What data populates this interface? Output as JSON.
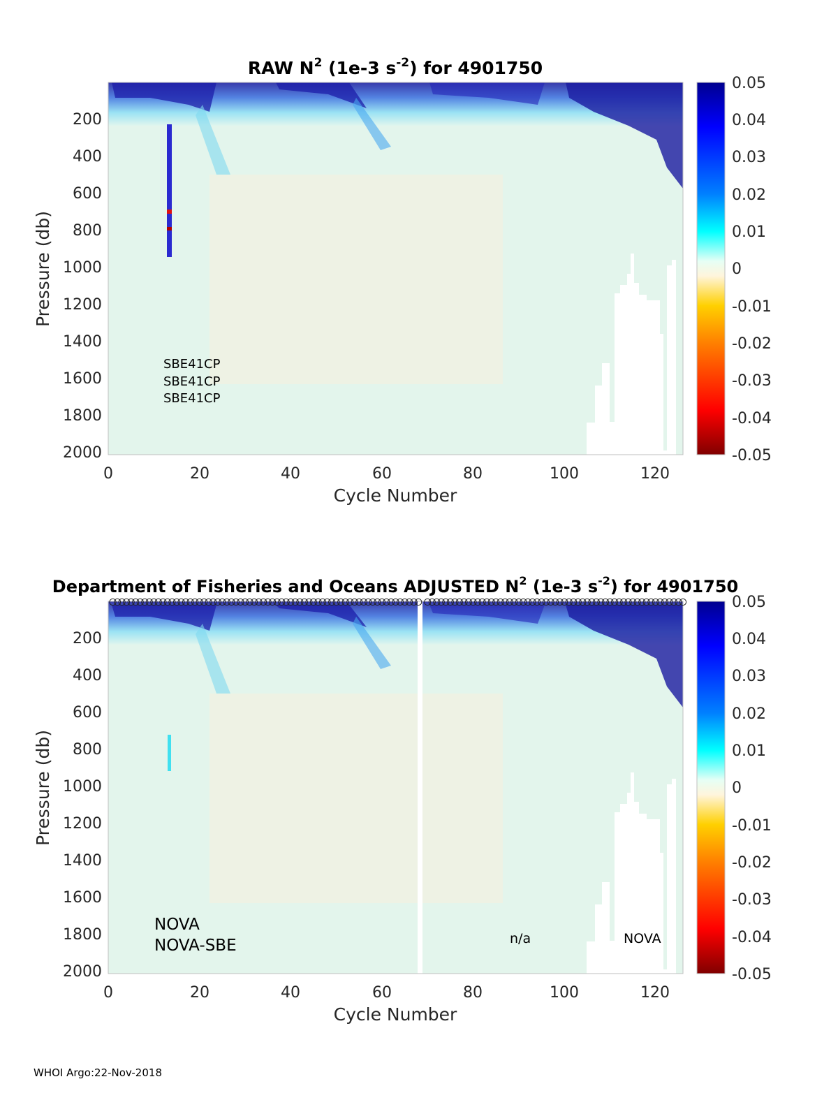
{
  "chart_data": [
    {
      "type": "heatmap",
      "title_prefix": "RAW N",
      "title_sup": "2",
      "title_mid": " (1e-3 s",
      "title_sup2": "-2",
      "title_suffix": ") for 4901750",
      "xlabel": "Cycle Number",
      "ylabel": "Pressure (db)",
      "xlim": [
        0,
        126
      ],
      "ylim": [
        2000,
        0
      ],
      "xticks": [
        "0",
        "20",
        "40",
        "60",
        "80",
        "100",
        "120"
      ],
      "yticks": [
        "200",
        "400",
        "600",
        "800",
        "1000",
        "1200",
        "1400",
        "1600",
        "1800",
        "2000"
      ],
      "colorbar_ticks": [
        "0.05",
        "0.04",
        "0.03",
        "0.02",
        "0.01",
        "0",
        "-0.01",
        "-0.02",
        "-0.03",
        "-0.04",
        "-0.05"
      ],
      "clim": [
        -0.05,
        0.05
      ],
      "annotations": [
        "SBE41CP",
        "SBE41CP",
        "SBE41CP"
      ]
    },
    {
      "type": "heatmap",
      "title_prefix": "Department of Fisheries and Oceans  ADJUSTED N",
      "title_sup": "2",
      "title_mid": " (1e-3 s",
      "title_sup2": "-2",
      "title_suffix": ") for 4901750",
      "xlabel": "Cycle Number",
      "ylabel": "Pressure (db)",
      "xlim": [
        0,
        126
      ],
      "ylim": [
        2000,
        0
      ],
      "xticks": [
        "0",
        "20",
        "40",
        "60",
        "80",
        "100",
        "120"
      ],
      "yticks": [
        "200",
        "400",
        "600",
        "800",
        "1000",
        "1200",
        "1400",
        "1600",
        "1800",
        "2000"
      ],
      "colorbar_ticks": [
        "0.05",
        "0.04",
        "0.03",
        "0.02",
        "0.01",
        "0",
        "-0.01",
        "-0.02",
        "-0.03",
        "-0.04",
        "-0.05"
      ],
      "clim": [
        -0.05,
        0.05
      ],
      "annotations": [
        "NOVA",
        "NOVA-SBE",
        "n/a",
        "NOVA"
      ],
      "missing_cycle": 69
    }
  ],
  "footer": "WHOI Argo:22-Nov-2018"
}
